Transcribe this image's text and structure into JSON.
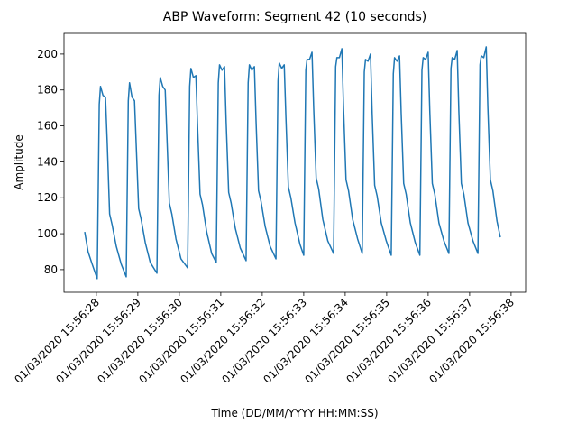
{
  "chart_data": {
    "type": "line",
    "title": "ABP Waveform: Segment 42 (10 seconds)",
    "x_label": "Time (DD/MM/YYYY HH:MM:SS)",
    "y_label": "Amplitude",
    "color": "#1f77b4",
    "xlim": [
      27.22,
      38.35
    ],
    "ylim": [
      67.4,
      211.5
    ],
    "xticks": [
      {
        "value": 28,
        "label": "01/03/2020 15:56:28"
      },
      {
        "value": 29,
        "label": "01/03/2020 15:56:29"
      },
      {
        "value": 30,
        "label": "01/03/2020 15:56:30"
      },
      {
        "value": 31,
        "label": "01/03/2020 15:56:31"
      },
      {
        "value": 32,
        "label": "01/03/2020 15:56:32"
      },
      {
        "value": 33,
        "label": "01/03/2020 15:56:33"
      },
      {
        "value": 34,
        "label": "01/03/2020 15:56:34"
      },
      {
        "value": 35,
        "label": "01/03/2020 15:56:35"
      },
      {
        "value": 36,
        "label": "01/03/2020 15:56:36"
      },
      {
        "value": 37,
        "label": "01/03/2020 15:56:37"
      },
      {
        "value": 38,
        "label": "01/03/2020 15:56:38"
      }
    ],
    "yticks": [
      80,
      100,
      120,
      140,
      160,
      180,
      200
    ],
    "x": [
      27.72,
      27.8,
      27.9,
      28.02,
      28.07,
      28.1,
      28.16,
      28.22,
      28.26,
      28.32,
      28.38,
      28.48,
      28.6,
      28.72,
      28.77,
      28.8,
      28.86,
      28.92,
      28.96,
      29.02,
      29.08,
      29.18,
      29.3,
      29.46,
      29.51,
      29.54,
      29.6,
      29.66,
      29.7,
      29.76,
      29.82,
      29.92,
      30.04,
      30.2,
      30.25,
      30.28,
      30.34,
      30.4,
      30.44,
      30.5,
      30.56,
      30.66,
      30.78,
      30.89,
      30.94,
      30.97,
      31.03,
      31.09,
      31.13,
      31.19,
      31.25,
      31.35,
      31.47,
      31.61,
      31.66,
      31.69,
      31.75,
      31.81,
      31.85,
      31.91,
      31.97,
      32.07,
      32.19,
      32.33,
      32.38,
      32.41,
      32.47,
      32.53,
      32.57,
      32.63,
      32.69,
      32.79,
      32.91,
      33.0,
      33.05,
      33.08,
      33.14,
      33.2,
      33.24,
      33.3,
      33.36,
      33.46,
      33.58,
      33.72,
      33.77,
      33.8,
      33.86,
      33.92,
      33.96,
      34.02,
      34.08,
      34.18,
      34.3,
      34.41,
      34.46,
      34.49,
      34.55,
      34.61,
      34.65,
      34.71,
      34.77,
      34.87,
      34.99,
      35.11,
      35.16,
      35.19,
      35.25,
      35.31,
      35.35,
      35.41,
      35.47,
      35.57,
      35.69,
      35.8,
      35.85,
      35.88,
      35.94,
      36.0,
      36.04,
      36.1,
      36.16,
      36.26,
      36.38,
      36.5,
      36.55,
      36.58,
      36.64,
      36.7,
      36.74,
      36.8,
      36.86,
      36.96,
      37.08,
      37.2,
      37.25,
      37.28,
      37.34,
      37.4,
      37.44,
      37.5,
      37.56,
      37.66,
      37.74
    ],
    "values": [
      101,
      90,
      83,
      75,
      172,
      182,
      177,
      176,
      152,
      111,
      105,
      93,
      83,
      76,
      174,
      184,
      176,
      174,
      150,
      114,
      108,
      95,
      84,
      78,
      177,
      187,
      182,
      180,
      155,
      117,
      111,
      97,
      86,
      81,
      182,
      192,
      187,
      188,
      160,
      122,
      116,
      101,
      89,
      84,
      184,
      194,
      191,
      193,
      162,
      123,
      117,
      103,
      92,
      85,
      184,
      194,
      191,
      193,
      163,
      124,
      118,
      104,
      93,
      86,
      185,
      195,
      192,
      194,
      165,
      126,
      120,
      106,
      94,
      88,
      191,
      197,
      197,
      201,
      170,
      131,
      125,
      108,
      96,
      89,
      193,
      198,
      198,
      203,
      170,
      130,
      124,
      108,
      97,
      89,
      190,
      197,
      196,
      200,
      167,
      127,
      121,
      106,
      96,
      88,
      189,
      198,
      196,
      199,
      167,
      128,
      122,
      106,
      95,
      88,
      191,
      198,
      197,
      201,
      168,
      128,
      122,
      106,
      96,
      89,
      192,
      198,
      197,
      202,
      168,
      128,
      122,
      106,
      96,
      89,
      194,
      199,
      198,
      204,
      170,
      130,
      124,
      107,
      98
    ]
  }
}
